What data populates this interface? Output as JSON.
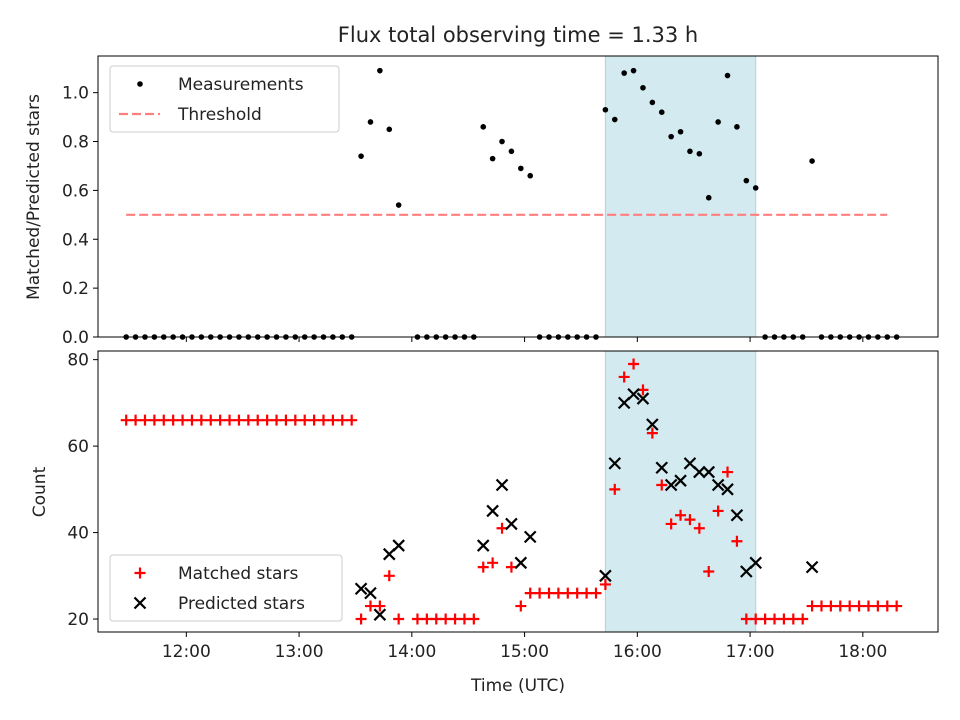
{
  "chart_data": [
    {
      "type": "scatter",
      "title": "Flux total observing time = 1.33 h",
      "ylabel": "Matched/Predicted stars",
      "xlabel": "",
      "xlim": [
        "11:13",
        "18:40"
      ],
      "ylim": [
        0,
        1.15
      ],
      "yticks": [
        "0.0",
        "0.2",
        "0.4",
        "0.6",
        "0.8",
        "1.0"
      ],
      "legend": "top-left",
      "shaded_interval": [
        "15:43",
        "17:03"
      ],
      "series": [
        {
          "name": "Measurements",
          "style": "dot",
          "color": "#000000",
          "points": [
            [
              "11:28",
              0
            ],
            [
              "11:33",
              0
            ],
            [
              "11:38",
              0
            ],
            [
              "11:43",
              0
            ],
            [
              "11:48",
              0
            ],
            [
              "11:53",
              0
            ],
            [
              "11:58",
              0
            ],
            [
              "12:03",
              0
            ],
            [
              "12:08",
              0
            ],
            [
              "12:13",
              0
            ],
            [
              "12:18",
              0
            ],
            [
              "12:23",
              0
            ],
            [
              "12:28",
              0
            ],
            [
              "12:33",
              0
            ],
            [
              "12:38",
              0
            ],
            [
              "12:43",
              0
            ],
            [
              "12:48",
              0
            ],
            [
              "12:53",
              0
            ],
            [
              "12:58",
              0
            ],
            [
              "13:03",
              0
            ],
            [
              "13:08",
              0
            ],
            [
              "13:13",
              0
            ],
            [
              "13:18",
              0
            ],
            [
              "13:23",
              0
            ],
            [
              "13:28",
              0
            ],
            [
              "13:33",
              0.74
            ],
            [
              "13:38",
              0.88
            ],
            [
              "13:43",
              1.09
            ],
            [
              "13:48",
              0.85
            ],
            [
              "13:53",
              0.54
            ],
            [
              "14:03",
              0
            ],
            [
              "14:08",
              0
            ],
            [
              "14:13",
              0
            ],
            [
              "14:18",
              0
            ],
            [
              "14:23",
              0
            ],
            [
              "14:28",
              0
            ],
            [
              "14:33",
              0
            ],
            [
              "14:38",
              0.86
            ],
            [
              "14:43",
              0.73
            ],
            [
              "14:48",
              0.8
            ],
            [
              "14:53",
              0.76
            ],
            [
              "14:58",
              0.69
            ],
            [
              "15:03",
              0.66
            ],
            [
              "15:08",
              0
            ],
            [
              "15:13",
              0
            ],
            [
              "15:18",
              0
            ],
            [
              "15:23",
              0
            ],
            [
              "15:28",
              0
            ],
            [
              "15:33",
              0
            ],
            [
              "15:38",
              0
            ],
            [
              "15:43",
              0.93
            ],
            [
              "15:48",
              0.89
            ],
            [
              "15:53",
              1.08
            ],
            [
              "15:58",
              1.09
            ],
            [
              "16:03",
              1.02
            ],
            [
              "16:08",
              0.96
            ],
            [
              "16:13",
              0.92
            ],
            [
              "16:18",
              0.82
            ],
            [
              "16:23",
              0.84
            ],
            [
              "16:28",
              0.76
            ],
            [
              "16:33",
              0.75
            ],
            [
              "16:38",
              0.57
            ],
            [
              "16:43",
              0.88
            ],
            [
              "16:48",
              1.07
            ],
            [
              "16:53",
              0.86
            ],
            [
              "16:58",
              0.64
            ],
            [
              "17:03",
              0.61
            ],
            [
              "17:08",
              0
            ],
            [
              "17:13",
              0
            ],
            [
              "17:18",
              0
            ],
            [
              "17:23",
              0
            ],
            [
              "17:28",
              0
            ],
            [
              "17:33",
              0.72
            ],
            [
              "17:38",
              0
            ],
            [
              "17:43",
              0
            ],
            [
              "17:48",
              0
            ],
            [
              "17:53",
              0
            ],
            [
              "17:58",
              0
            ],
            [
              "18:03",
              0
            ],
            [
              "18:08",
              0
            ],
            [
              "18:13",
              0
            ],
            [
              "18:18",
              0
            ]
          ]
        },
        {
          "name": "Threshold",
          "style": "dashed-line",
          "color": "#ff7f7f",
          "points": [
            [
              "11:28",
              0.5
            ],
            [
              "18:13",
              0.5
            ]
          ]
        }
      ]
    },
    {
      "type": "scatter",
      "title": "",
      "xlabel": "Time (UTC)",
      "ylabel": "Count",
      "xlim": [
        "11:13",
        "18:40"
      ],
      "ylim": [
        17,
        82
      ],
      "xticks": [
        "12:00",
        "13:00",
        "14:00",
        "15:00",
        "16:00",
        "17:00",
        "18:00"
      ],
      "yticks": [
        "20",
        "40",
        "60",
        "80"
      ],
      "legend": "bottom-left",
      "shaded_interval": [
        "15:43",
        "17:03"
      ],
      "series": [
        {
          "name": "Matched stars",
          "style": "plus",
          "color": "#ff0000",
          "points": [
            [
              "11:28",
              66
            ],
            [
              "11:33",
              66
            ],
            [
              "11:38",
              66
            ],
            [
              "11:43",
              66
            ],
            [
              "11:48",
              66
            ],
            [
              "11:53",
              66
            ],
            [
              "11:58",
              66
            ],
            [
              "12:03",
              66
            ],
            [
              "12:08",
              66
            ],
            [
              "12:13",
              66
            ],
            [
              "12:18",
              66
            ],
            [
              "12:23",
              66
            ],
            [
              "12:28",
              66
            ],
            [
              "12:33",
              66
            ],
            [
              "12:38",
              66
            ],
            [
              "12:43",
              66
            ],
            [
              "12:48",
              66
            ],
            [
              "12:53",
              66
            ],
            [
              "12:58",
              66
            ],
            [
              "13:03",
              66
            ],
            [
              "13:08",
              66
            ],
            [
              "13:13",
              66
            ],
            [
              "13:18",
              66
            ],
            [
              "13:23",
              66
            ],
            [
              "13:28",
              66
            ],
            [
              "13:33",
              20
            ],
            [
              "13:38",
              23
            ],
            [
              "13:43",
              23
            ],
            [
              "13:48",
              30
            ],
            [
              "13:53",
              20
            ],
            [
              "14:03",
              20
            ],
            [
              "14:08",
              20
            ],
            [
              "14:13",
              20
            ],
            [
              "14:18",
              20
            ],
            [
              "14:23",
              20
            ],
            [
              "14:28",
              20
            ],
            [
              "14:33",
              20
            ],
            [
              "14:38",
              32
            ],
            [
              "14:43",
              33
            ],
            [
              "14:48",
              41
            ],
            [
              "14:53",
              32
            ],
            [
              "14:58",
              23
            ],
            [
              "15:03",
              26
            ],
            [
              "15:08",
              26
            ],
            [
              "15:13",
              26
            ],
            [
              "15:18",
              26
            ],
            [
              "15:23",
              26
            ],
            [
              "15:28",
              26
            ],
            [
              "15:33",
              26
            ],
            [
              "15:38",
              26
            ],
            [
              "15:43",
              28
            ],
            [
              "15:48",
              50
            ],
            [
              "15:53",
              76
            ],
            [
              "15:58",
              79
            ],
            [
              "16:03",
              73
            ],
            [
              "16:08",
              63
            ],
            [
              "16:13",
              51
            ],
            [
              "16:18",
              42
            ],
            [
              "16:23",
              44
            ],
            [
              "16:28",
              43
            ],
            [
              "16:33",
              41
            ],
            [
              "16:38",
              31
            ],
            [
              "16:43",
              45
            ],
            [
              "16:48",
              54
            ],
            [
              "16:53",
              38
            ],
            [
              "16:58",
              20
            ],
            [
              "17:03",
              20
            ],
            [
              "17:08",
              20
            ],
            [
              "17:13",
              20
            ],
            [
              "17:18",
              20
            ],
            [
              "17:23",
              20
            ],
            [
              "17:28",
              20
            ],
            [
              "17:33",
              23
            ],
            [
              "17:38",
              23
            ],
            [
              "17:43",
              23
            ],
            [
              "17:48",
              23
            ],
            [
              "17:53",
              23
            ],
            [
              "17:58",
              23
            ],
            [
              "18:03",
              23
            ],
            [
              "18:08",
              23
            ],
            [
              "18:13",
              23
            ],
            [
              "18:18",
              23
            ]
          ]
        },
        {
          "name": "Predicted stars",
          "style": "x",
          "color": "#000000",
          "points": [
            [
              "13:33",
              27
            ],
            [
              "13:38",
              26
            ],
            [
              "13:43",
              21
            ],
            [
              "13:48",
              35
            ],
            [
              "13:53",
              37
            ],
            [
              "14:38",
              37
            ],
            [
              "14:43",
              45
            ],
            [
              "14:48",
              51
            ],
            [
              "14:53",
              42
            ],
            [
              "14:58",
              33
            ],
            [
              "15:03",
              39
            ],
            [
              "15:43",
              30
            ],
            [
              "15:48",
              56
            ],
            [
              "15:53",
              70
            ],
            [
              "15:58",
              72
            ],
            [
              "16:03",
              71
            ],
            [
              "16:08",
              65
            ],
            [
              "16:13",
              55
            ],
            [
              "16:18",
              51
            ],
            [
              "16:23",
              52
            ],
            [
              "16:28",
              56
            ],
            [
              "16:33",
              54
            ],
            [
              "16:38",
              54
            ],
            [
              "16:43",
              51
            ],
            [
              "16:48",
              50
            ],
            [
              "16:53",
              44
            ],
            [
              "16:58",
              31
            ],
            [
              "17:03",
              33
            ],
            [
              "17:33",
              32
            ]
          ]
        }
      ]
    }
  ]
}
